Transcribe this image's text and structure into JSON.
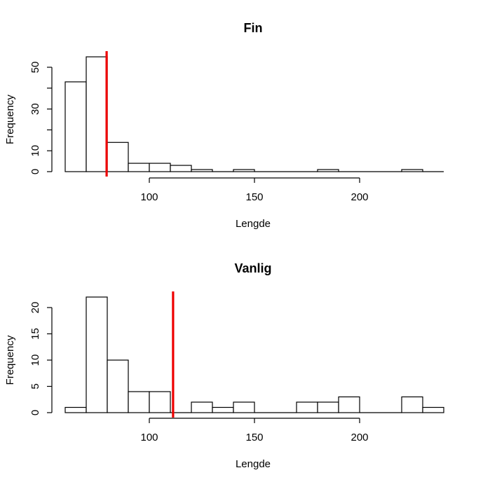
{
  "chart_data": [
    {
      "type": "bar",
      "title": "Fin",
      "xlabel": "Lengde",
      "ylabel": "Frequency",
      "bin_edges": [
        60,
        70,
        80,
        90,
        100,
        110,
        120,
        130,
        140,
        150,
        160,
        170,
        180,
        190,
        200,
        210,
        220,
        230,
        240
      ],
      "values": [
        43,
        55,
        14,
        4,
        4,
        3,
        1,
        0,
        1,
        0,
        0,
        0,
        1,
        0,
        0,
        0,
        1,
        0
      ],
      "xticks": [
        100,
        150,
        200
      ],
      "yticks": [
        0,
        10,
        30,
        50
      ],
      "yticks_minor": [
        20,
        40
      ],
      "xlim": [
        60,
        240
      ],
      "ylim": [
        0,
        55
      ],
      "vline": {
        "x": 79.7,
        "color": "#ee0000"
      },
      "grid": false
    },
    {
      "type": "bar",
      "title": "Vanlig",
      "xlabel": "Lengde",
      "ylabel": "Frequency",
      "bin_edges": [
        60,
        70,
        80,
        90,
        100,
        110,
        120,
        130,
        140,
        150,
        160,
        170,
        180,
        190,
        200,
        210,
        220,
        230,
        240
      ],
      "values": [
        1,
        22,
        10,
        4,
        4,
        0,
        2,
        1,
        2,
        0,
        0,
        2,
        2,
        3,
        0,
        0,
        3,
        1
      ],
      "xticks": [
        100,
        150,
        200
      ],
      "yticks": [
        0,
        5,
        10,
        15,
        20
      ],
      "xlim": [
        60,
        240
      ],
      "ylim": [
        0,
        22
      ],
      "vline": {
        "x": 111.3,
        "color": "#ee0000"
      },
      "grid": false
    }
  ]
}
